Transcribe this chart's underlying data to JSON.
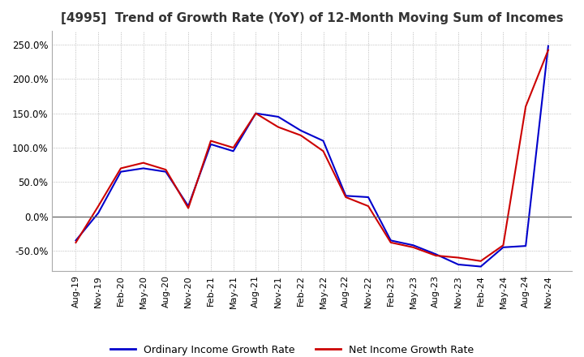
{
  "title": "[4995]  Trend of Growth Rate (YoY) of 12-Month Moving Sum of Incomes",
  "title_fontsize": 11,
  "legend_labels": [
    "Ordinary Income Growth Rate",
    "Net Income Growth Rate"
  ],
  "legend_colors": [
    "#0000cc",
    "#cc0000"
  ],
  "ylim": [
    -80,
    270
  ],
  "yticks": [
    -50,
    0,
    50,
    100,
    150,
    200,
    250
  ],
  "xlabel_dates": [
    "Aug-19",
    "Nov-19",
    "Feb-20",
    "May-20",
    "Aug-20",
    "Nov-20",
    "Feb-21",
    "May-21",
    "Aug-21",
    "Nov-21",
    "Feb-22",
    "May-22",
    "Aug-22",
    "Nov-22",
    "Feb-23",
    "May-23",
    "Aug-23",
    "Nov-23",
    "Feb-24",
    "May-24",
    "Aug-24",
    "Nov-24"
  ],
  "ordinary_income_gr": [
    -35,
    5,
    65,
    70,
    65,
    15,
    105,
    95,
    150,
    145,
    125,
    110,
    30,
    28,
    -35,
    -42,
    -55,
    -70,
    -73,
    -45,
    -43,
    248
  ],
  "net_income_gr": [
    -38,
    15,
    70,
    78,
    68,
    12,
    110,
    100,
    150,
    130,
    118,
    95,
    28,
    15,
    -38,
    -45,
    -57,
    -60,
    -65,
    -42,
    160,
    242
  ],
  "bg_color": "#ffffff",
  "grid_color": "#aaaaaa",
  "line_width": 1.5,
  "zero_line_color": "#555555"
}
